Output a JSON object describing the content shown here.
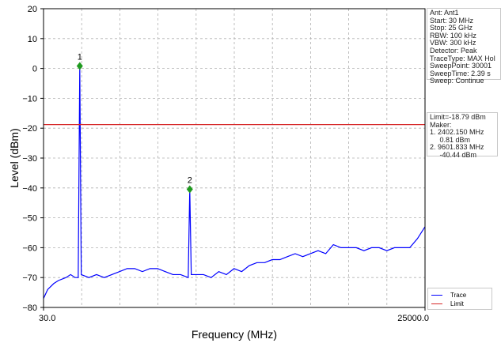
{
  "chart_data": {
    "type": "line",
    "xlabel": "Frequency (MHz)",
    "ylabel": "Level (dBm)",
    "xlim": [
      30.0,
      25000.0
    ],
    "ylim": [
      -80,
      20
    ],
    "x_tick_labels": [
      "30.0",
      "25000.0"
    ],
    "y_ticks": [
      20,
      10,
      0,
      -10,
      -20,
      -30,
      -40,
      -50,
      -60,
      -70,
      -80
    ],
    "y_tick_labels": [
      "20",
      "10",
      "0",
      "−10",
      "−20",
      "−30",
      "−40",
      "−50",
      "−60",
      "−70",
      "−80"
    ],
    "grid": true,
    "limit": -18.79,
    "series": [
      {
        "name": "Trace",
        "color": "#0000ff",
        "x": [
          30,
          300,
          700,
          1000,
          1500,
          1800,
          2100,
          2300,
          2402.15,
          2500,
          3000,
          3500,
          4000,
          4500,
          5000,
          5500,
          6000,
          6500,
          7000,
          7500,
          8000,
          8500,
          9000,
          9500,
          9601.833,
          9700,
          10000,
          10500,
          11000,
          11500,
          12000,
          12500,
          13000,
          13500,
          14000,
          14500,
          15000,
          15500,
          16000,
          16500,
          17000,
          17500,
          18000,
          18500,
          19000,
          19500,
          20000,
          20500,
          21000,
          21500,
          22000,
          22500,
          23000,
          23500,
          24000,
          24500,
          25000
        ],
        "y": [
          -77,
          -74,
          -72,
          -71,
          -70,
          -69,
          -70,
          -70,
          0.81,
          -69,
          -70,
          -69,
          -70,
          -69,
          -68,
          -67,
          -67,
          -68,
          -67,
          -67,
          -68,
          -69,
          -69,
          -70,
          -40.44,
          -69,
          -69,
          -69,
          -70,
          -68,
          -69,
          -67,
          -68,
          -66,
          -65,
          -65,
          -64,
          -64,
          -63,
          -62,
          -63,
          -62,
          -61,
          -62,
          -59,
          -60,
          -60,
          -60,
          -61,
          -60,
          -60,
          -61,
          -60,
          -60,
          -60,
          -57,
          -53
        ]
      },
      {
        "name": "Limit",
        "color": "#d62728",
        "x": [
          30,
          25000
        ],
        "y": [
          -18.79,
          -18.79
        ]
      }
    ],
    "markers": [
      {
        "label": "1",
        "x": 2402.15,
        "y": 0.81
      },
      {
        "label": "2",
        "x": 9601.833,
        "y": -40.44
      }
    ],
    "legend_position": "bottom-right"
  },
  "info_top": "Ant: Ant1\nStart: 30 MHz\nStop: 25 GHz\nRBW: 100 kHz\nVBW: 300 kHz\nDetector: Peak\nTraceType: MAX Hol\nSweepPoint: 30001\nSweepTime: 2.39 s\nSweep: Continue",
  "info_mid": "Limit=-18.79 dBm\nMaker:\n1. 2402.150 MHz\n     0.81 dBm\n2. 9601.833 MHz\n     -40.44 dBm",
  "legend": {
    "trace": "Trace",
    "limit": "Limit"
  }
}
